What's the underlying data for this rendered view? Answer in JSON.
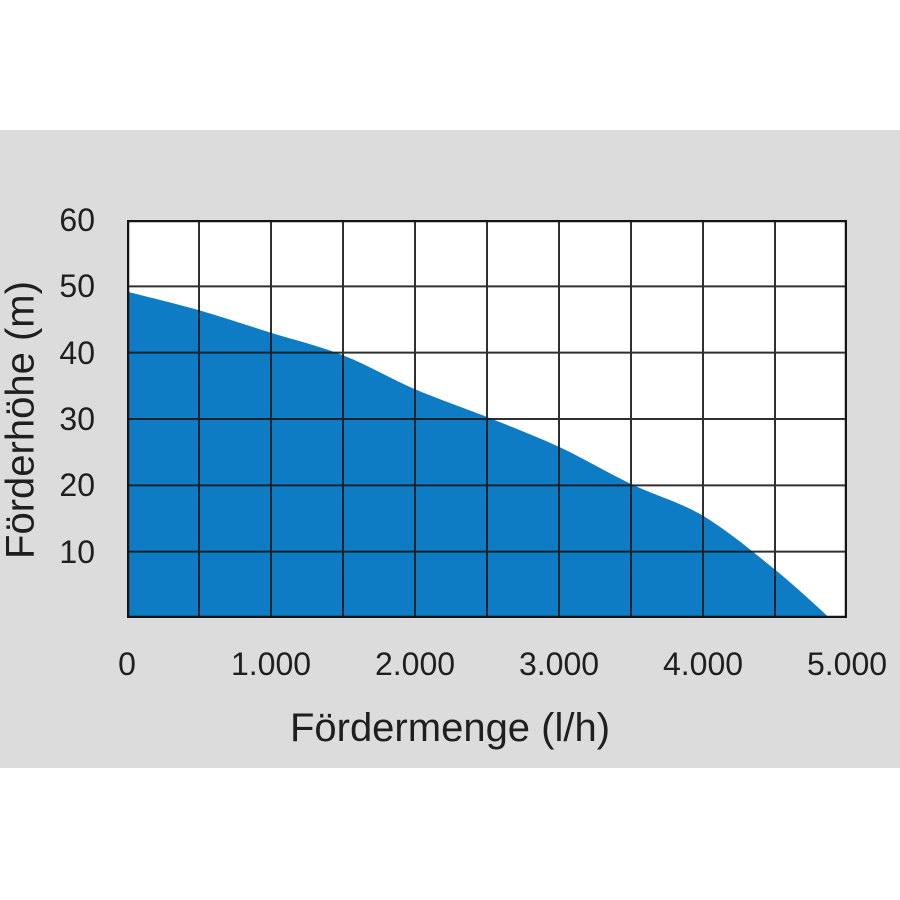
{
  "chart_data": {
    "type": "area",
    "title": "",
    "xlabel": "Fördermenge (l/h)",
    "ylabel": "Förderhöhe (m)",
    "xlim": [
      0,
      5000
    ],
    "ylim": [
      0,
      60
    ],
    "x_grid_step": 500,
    "y_grid_step": 10,
    "grid": true,
    "legend": false,
    "x_ticks": [
      {
        "value": 0,
        "label": "0"
      },
      {
        "value": 1000,
        "label": "1.000"
      },
      {
        "value": 2000,
        "label": "2.000"
      },
      {
        "value": 3000,
        "label": "3.000"
      },
      {
        "value": 4000,
        "label": "4.000"
      },
      {
        "value": 5000,
        "label": "5.000"
      }
    ],
    "y_ticks": [
      {
        "value": 10,
        "label": "10"
      },
      {
        "value": 20,
        "label": "20"
      },
      {
        "value": 30,
        "label": "30"
      },
      {
        "value": 40,
        "label": "40"
      },
      {
        "value": 50,
        "label": "50"
      },
      {
        "value": 60,
        "label": "60"
      }
    ],
    "series": [
      {
        "points": [
          [
            0,
            49.2
          ],
          [
            500,
            46.4
          ],
          [
            1000,
            43.0
          ],
          [
            1500,
            39.6
          ],
          [
            2000,
            34.5
          ],
          [
            2500,
            30.3
          ],
          [
            3000,
            25.8
          ],
          [
            3500,
            20.2
          ],
          [
            4000,
            15.4
          ],
          [
            4500,
            7.3
          ],
          [
            4880,
            0
          ]
        ]
      }
    ],
    "colors": {
      "area_fill": "#0d7cc4",
      "grid_line": "#1a1a1a",
      "plot_border": "#141414",
      "plot_background": "#ffffff",
      "panel_background": "#dcdcdc",
      "page_background": "#ffffff",
      "text": "#1f1f1f"
    }
  }
}
